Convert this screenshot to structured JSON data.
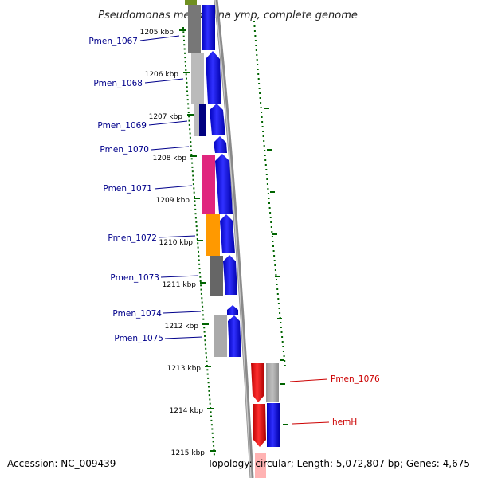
{
  "title": "Pseudomonas mendocina ymp, complete genome",
  "accession_label": "Accession: NC_009439",
  "topology_label": "Topology: circular; Length: 5,072,807 bp; Genes: 4,675",
  "colors": {
    "forward": "#0000dd",
    "reverse": "#dd0000",
    "backbone": "#888888",
    "ticks": "#006400",
    "label_left": "#00008b",
    "label_right": "#cc0000"
  },
  "ticks": [
    "1205 kbp",
    "1206 kbp",
    "1207 kbp",
    "1208 kbp",
    "1209 kbp",
    "1210 kbp",
    "1211 kbp",
    "1212 kbp",
    "1213 kbp",
    "1214 kbp",
    "1215 kbp"
  ],
  "genes_left": [
    {
      "label": "Pmen_1067",
      "cog_color": "#777777"
    },
    {
      "label": "Pmen_1068",
      "cog_color": "#bbbbbb"
    },
    {
      "label": "Pmen_1069",
      "cog_color": "#000080"
    },
    {
      "label": "Pmen_1070",
      "cog_color": ""
    },
    {
      "label": "Pmen_1071",
      "cog_color": "#e0267e"
    },
    {
      "label": "Pmen_1072",
      "cog_color": "#ff9900"
    },
    {
      "label": "Pmen_1073",
      "cog_color": "#666666"
    },
    {
      "label": "Pmen_1074",
      "cog_color": ""
    },
    {
      "label": "Pmen_1075",
      "cog_color": "#aaaaaa"
    }
  ],
  "genes_right": [
    {
      "label": "Pmen_1076",
      "cog_color": "#bbbbbb"
    },
    {
      "label": "hemH",
      "cog_color": "#0000dd"
    }
  ]
}
